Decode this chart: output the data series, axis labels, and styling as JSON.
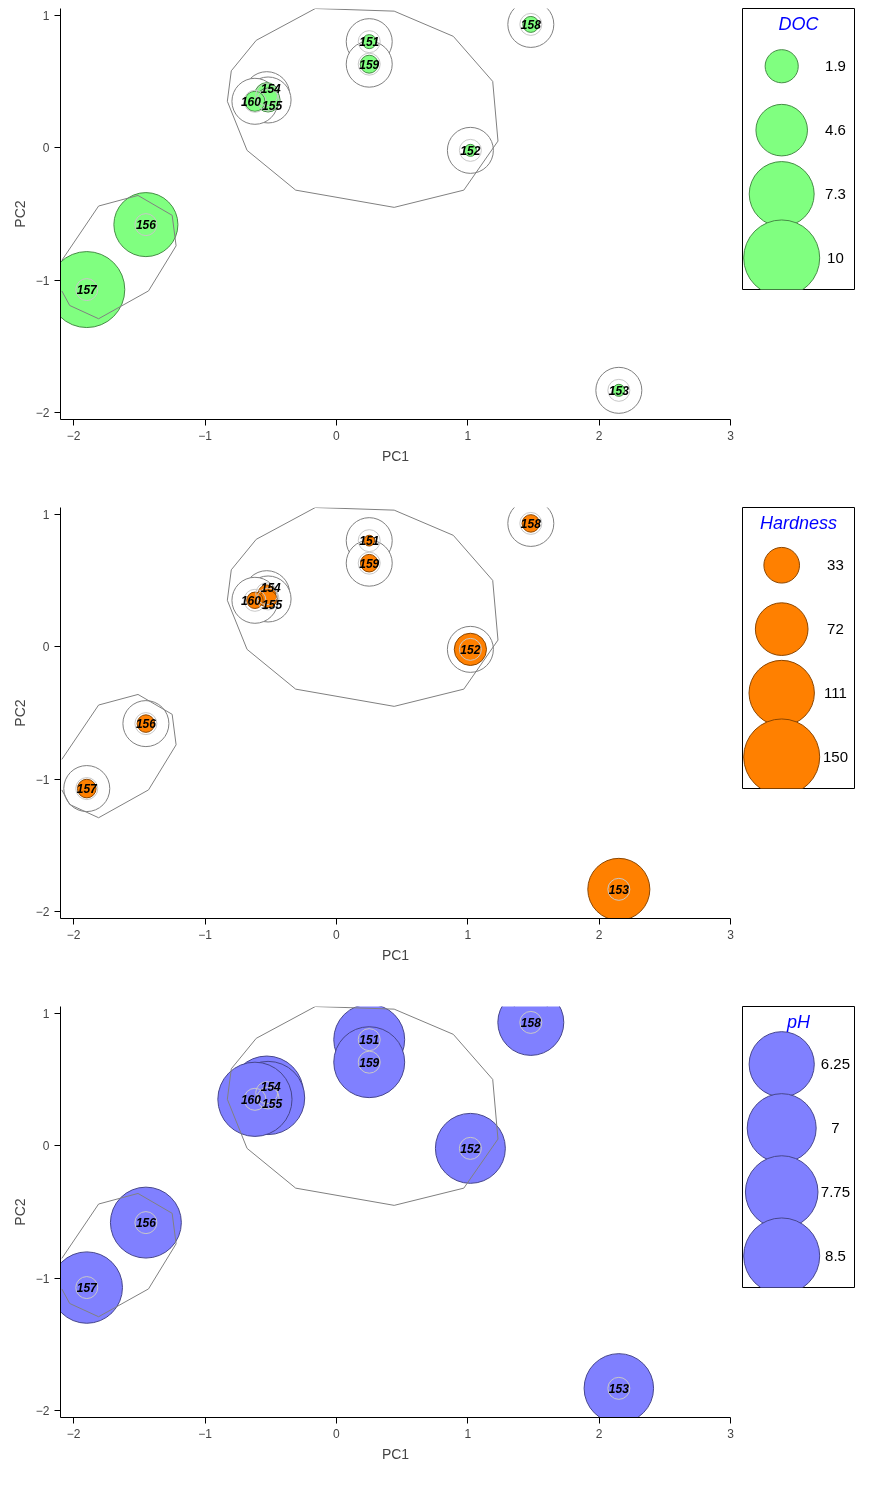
{
  "chart_data": [
    {
      "type": "bubble",
      "xlabel": "PC1",
      "ylabel": "PC2",
      "xlim": [
        -2.1,
        3.0
      ],
      "ylim": [
        -2.05,
        1.05
      ],
      "xticks": [
        -2,
        -1,
        0,
        1,
        2,
        3
      ],
      "yticks": [
        -2,
        -1,
        0,
        1
      ],
      "grid": false,
      "legend_title": "DOC",
      "size_legend": [
        1.9,
        4.6,
        7.3,
        10
      ],
      "x": [
        0.25,
        1.02,
        2.15,
        -0.53,
        -0.52,
        -1.45,
        -1.9,
        1.48,
        0.25,
        -0.62
      ],
      "series": [
        {
          "type": "line",
          "color": "#808080",
          "x": [
            -0.83,
            -0.8,
            -0.61,
            -0.16,
            0.44,
            0.89,
            1.19,
            1.23
          ],
          "values": [
            0.35,
            0.58,
            0.81,
            1.05,
            1.03,
            0.84,
            0.5,
            0.05
          ]
        },
        {
          "type": "line",
          "color": "#808080",
          "x": [
            -0.83,
            -0.68,
            -0.31,
            0.44,
            0.97,
            1.23
          ],
          "values": [
            0.35,
            -0.02,
            -0.32,
            -0.45,
            -0.32,
            0.05
          ]
        },
        {
          "type": "line",
          "color": "#808080",
          "x": [
            -2.09,
            -1.81,
            -1.51,
            -1.25,
            -1.22
          ],
          "values": [
            -0.85,
            -0.44,
            -0.36,
            -0.51,
            -0.74
          ]
        },
        {
          "type": "line",
          "color": "#808080",
          "x": [
            -2.09,
            -2.03,
            -1.81,
            -1.43,
            -1.22
          ],
          "values": [
            -1.08,
            -1.19,
            -1.29,
            -1.08,
            -0.74
          ]
        },
        {
          "color": "#80ff80",
          "values": [
            0.8,
            -0.02,
            -1.83,
            0.4,
            0.36,
            -0.58,
            -1.07,
            0.93,
            0.63,
            0.35
          ],
          "sizes": [
            0.34,
            0.25,
            0.25,
            1,
            1,
            7.1,
            10,
            0.44,
            0.56,
            0.7
          ]
        }
      ],
      "annotations": [
        {
          "text": "151",
          "x": 0.25,
          "y": 0.8
        },
        {
          "text": "152",
          "x": 1.02,
          "y": -0.02
        },
        {
          "text": "153",
          "x": 2.15,
          "y": -1.83
        },
        {
          "text": "154",
          "x": -0.53,
          "y": 0.4
        },
        {
          "text": "155",
          "x": -0.52,
          "y": 0.36
        },
        {
          "text": "156",
          "x": -1.45,
          "y": -0.58
        },
        {
          "text": "157",
          "x": -1.9,
          "y": -1.07
        },
        {
          "text": "158",
          "x": 1.48,
          "y": 0.93
        },
        {
          "text": "159",
          "x": 0.25,
          "y": 0.63
        },
        {
          "text": "160",
          "x": -0.62,
          "y": 0.35
        }
      ]
    },
    {
      "type": "bubble",
      "xlabel": "PC1",
      "ylabel": "PC2",
      "xlim": [
        -2.1,
        3.0
      ],
      "ylim": [
        -2.05,
        1.05
      ],
      "xticks": [
        -2,
        -1,
        0,
        1,
        2,
        3
      ],
      "yticks": [
        -2,
        -1,
        0,
        1
      ],
      "grid": false,
      "legend_title": "Hardness",
      "size_legend": [
        33,
        72,
        111,
        150
      ],
      "x": [
        0.25,
        1.02,
        2.15,
        -0.53,
        -0.52,
        -1.45,
        -1.9,
        1.48,
        0.25,
        -0.62
      ],
      "series": [
        {
          "type": "line",
          "color": "#808080",
          "x": [
            -0.83,
            -0.8,
            -0.61,
            -0.16,
            0.44,
            0.89,
            1.19,
            1.23
          ],
          "values": [
            0.35,
            0.58,
            0.81,
            1.05,
            1.03,
            0.84,
            0.5,
            0.05
          ]
        },
        {
          "type": "line",
          "color": "#808080",
          "x": [
            -0.83,
            -0.68,
            -0.31,
            0.44,
            0.97,
            1.23
          ],
          "values": [
            0.35,
            -0.02,
            -0.32,
            -0.45,
            -0.32,
            0.05
          ]
        },
        {
          "type": "line",
          "color": "#808080",
          "x": [
            -2.09,
            -1.81,
            -1.51,
            -1.25,
            -1.22
          ],
          "values": [
            -0.85,
            -0.44,
            -0.36,
            -0.51,
            -0.74
          ]
        },
        {
          "type": "line",
          "color": "#808080",
          "x": [
            -2.09,
            -2.03,
            -1.81,
            -1.43,
            -1.22
          ],
          "values": [
            -1.08,
            -1.19,
            -1.29,
            -1.08,
            -0.74
          ]
        },
        {
          "color": "#ff8000",
          "values": [
            0.8,
            -0.02,
            -1.83,
            0.4,
            0.36,
            -0.58,
            -1.07,
            0.93,
            0.63,
            0.35
          ],
          "sizes": [
            3,
            27,
            100,
            8,
            8,
            8,
            9,
            8,
            8,
            7
          ]
        }
      ],
      "annotations": [
        {
          "text": "151",
          "x": 0.25,
          "y": 0.8
        },
        {
          "text": "152",
          "x": 1.02,
          "y": -0.02
        },
        {
          "text": "153",
          "x": 2.15,
          "y": -1.83
        },
        {
          "text": "154",
          "x": -0.53,
          "y": 0.4
        },
        {
          "text": "155",
          "x": -0.52,
          "y": 0.36
        },
        {
          "text": "156",
          "x": -1.45,
          "y": -0.58
        },
        {
          "text": "157",
          "x": -1.9,
          "y": -1.07
        },
        {
          "text": "158",
          "x": 1.48,
          "y": 0.93
        },
        {
          "text": "159",
          "x": 0.25,
          "y": 0.63
        },
        {
          "text": "160",
          "x": -0.62,
          "y": 0.35
        }
      ]
    },
    {
      "type": "bubble",
      "xlabel": "PC1",
      "ylabel": "PC2",
      "xlim": [
        -2.1,
        3.0
      ],
      "ylim": [
        -2.05,
        1.05
      ],
      "xticks": [
        -2,
        -1,
        0,
        1,
        2,
        3
      ],
      "yticks": [
        -2,
        -1,
        0,
        1
      ],
      "grid": false,
      "legend_title": "pH",
      "size_legend": [
        6.25,
        7,
        7.75,
        8.5
      ],
      "x": [
        0.25,
        1.02,
        2.15,
        -0.53,
        -0.52,
        -1.45,
        -1.9,
        1.48,
        0.25,
        -0.62
      ],
      "series": [
        {
          "type": "line",
          "color": "#808080",
          "x": [
            -0.83,
            -0.8,
            -0.61,
            -0.16,
            0.44,
            0.89,
            1.19,
            1.23
          ],
          "values": [
            0.35,
            0.58,
            0.81,
            1.05,
            1.03,
            0.84,
            0.5,
            0.05
          ]
        },
        {
          "type": "line",
          "color": "#808080",
          "x": [
            -0.83,
            -0.68,
            -0.31,
            0.44,
            0.97,
            1.23
          ],
          "values": [
            0.35,
            -0.02,
            -0.32,
            -0.45,
            -0.32,
            0.05
          ]
        },
        {
          "type": "line",
          "color": "#808080",
          "x": [
            -2.09,
            -1.81,
            -1.51,
            -1.25,
            -1.22
          ],
          "values": [
            -0.85,
            -0.44,
            -0.36,
            -0.51,
            -0.74
          ]
        },
        {
          "type": "line",
          "color": "#808080",
          "x": [
            -2.09,
            -2.03,
            -1.81,
            -1.43,
            -1.22
          ],
          "values": [
            -1.08,
            -1.19,
            -1.29,
            -1.08,
            -0.74
          ]
        },
        {
          "color": "#8080ff",
          "values": [
            0.8,
            -0.02,
            -1.83,
            0.4,
            0.36,
            -0.58,
            -1.07,
            0.93,
            0.63,
            0.35
          ],
          "sizes": [
            7.4,
            7.2,
            7.1,
            7.9,
            7.9,
            7.4,
            7.5,
            6.4,
            7.4,
            8.1
          ]
        }
      ],
      "annotations": [
        {
          "text": "151",
          "x": 0.25,
          "y": 0.8
        },
        {
          "text": "152",
          "x": 1.02,
          "y": -0.02
        },
        {
          "text": "153",
          "x": 2.15,
          "y": -1.83
        },
        {
          "text": "154",
          "x": -0.53,
          "y": 0.4
        },
        {
          "text": "155",
          "x": -0.52,
          "y": 0.36
        },
        {
          "text": "156",
          "x": -1.45,
          "y": -0.58
        },
        {
          "text": "157",
          "x": -1.9,
          "y": -1.07
        },
        {
          "text": "158",
          "x": 1.48,
          "y": 0.93
        },
        {
          "text": "159",
          "x": 0.25,
          "y": 0.63
        },
        {
          "text": "160",
          "x": -0.62,
          "y": 0.35
        }
      ]
    }
  ]
}
